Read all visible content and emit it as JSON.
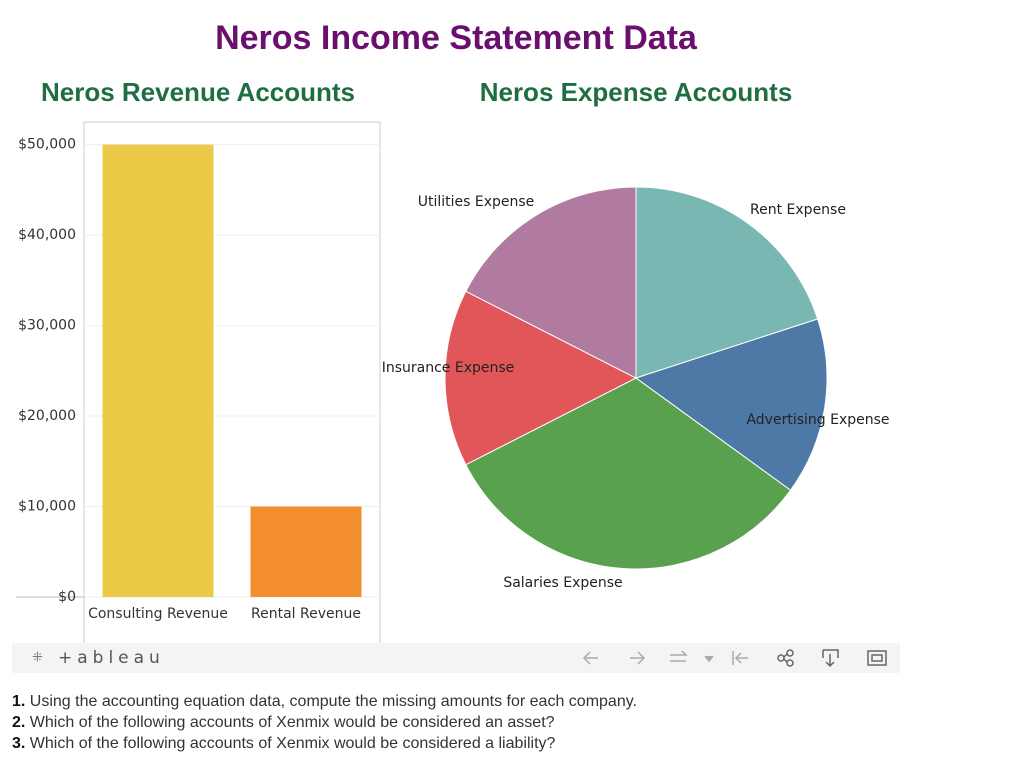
{
  "page": {
    "title": "Neros Income Statement Data"
  },
  "chart_data": [
    {
      "type": "bar",
      "title": "Neros Revenue Accounts",
      "categories": [
        "Consulting Revenue",
        "Rental Revenue"
      ],
      "values": [
        50000,
        10000
      ],
      "colors": [
        "#edc948",
        "#f28e2b"
      ],
      "ylim": [
        0,
        52500
      ],
      "yticks": [
        {
          "value": 0,
          "label": "$0"
        },
        {
          "value": 10000,
          "label": "$10,000"
        },
        {
          "value": 20000,
          "label": "$20,000"
        },
        {
          "value": 30000,
          "label": "$30,000"
        },
        {
          "value": 40000,
          "label": "$40,000"
        },
        {
          "value": 50000,
          "label": "$50,000"
        }
      ],
      "grid": true
    },
    {
      "type": "pie",
      "title": "Neros Expense Accounts",
      "categories": [
        "Rent Expense",
        "Advertising Expense",
        "Salaries Expense",
        "Insurance Expense",
        "Utilities Expense"
      ],
      "values": [
        20,
        15,
        32.5,
        15,
        17.5
      ],
      "colors": [
        "#79b7b2",
        "#4e79a7",
        "#59a14f",
        "#e15759",
        "#b07aa1"
      ]
    }
  ],
  "toolbar": {
    "logo": "+ableau"
  },
  "questions": [
    {
      "number": "1.",
      "text": "Using the accounting equation data, compute the missing amounts for each company."
    },
    {
      "number": "2.",
      "text": "Which of the following accounts of Xenmix would be considered an asset?"
    },
    {
      "number": "3.",
      "text": "Which of the following accounts of Xenmix would be considered a liability?"
    }
  ]
}
